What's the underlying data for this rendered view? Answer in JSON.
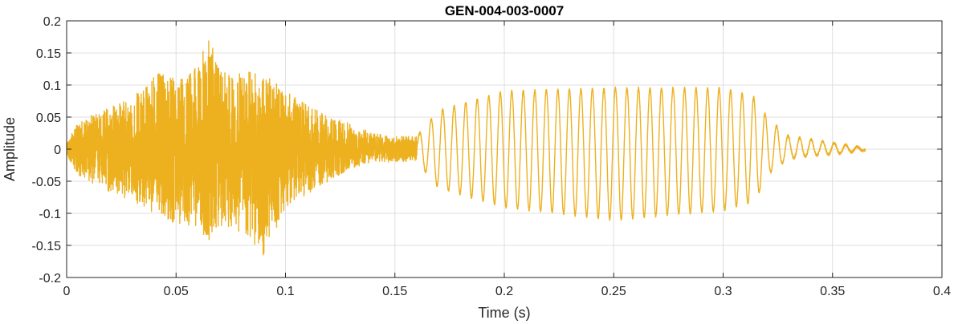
{
  "chart_data": {
    "type": "line",
    "title": "GEN-004-003-0007",
    "xlabel": "Time (s)",
    "ylabel": "Amplitude",
    "xlim": [
      0,
      0.4
    ],
    "ylim": [
      -0.2,
      0.2
    ],
    "x_ticks": [
      0,
      0.05,
      0.1,
      0.15,
      0.2,
      0.25,
      0.3,
      0.35,
      0.4
    ],
    "x_tick_labels": [
      "0",
      "0.05",
      "0.1",
      "0.15",
      "0.2",
      "0.25",
      "0.3",
      "0.35",
      "0.4"
    ],
    "y_ticks": [
      -0.2,
      -0.15,
      -0.1,
      -0.05,
      0,
      0.05,
      0.1,
      0.15,
      0.2
    ],
    "y_tick_labels": [
      "-0.2",
      "-0.15",
      "-0.1",
      "-0.05",
      "0",
      "0.05",
      "0.1",
      "0.15",
      "0.2"
    ],
    "grid": true,
    "box": true,
    "series": [
      {
        "color": "#EDB120",
        "envelope": {
          "x": [
            0,
            0.005,
            0.01,
            0.02,
            0.03,
            0.04,
            0.05,
            0.06,
            0.065,
            0.07,
            0.08,
            0.09,
            0.1,
            0.11,
            0.12,
            0.13,
            0.14,
            0.15,
            0.16,
            0.17,
            0.2,
            0.25,
            0.3,
            0.315,
            0.32,
            0.33,
            0.34,
            0.35,
            0.365
          ],
          "upper": [
            0.01,
            0.04,
            0.05,
            0.07,
            0.08,
            0.12,
            0.11,
            0.13,
            0.18,
            0.12,
            0.12,
            0.12,
            0.09,
            0.07,
            0.05,
            0.04,
            0.025,
            0.02,
            0.02,
            0.06,
            0.09,
            0.095,
            0.095,
            0.08,
            0.05,
            0.02,
            0.015,
            0.01,
            0.002
          ],
          "lower": [
            -0.01,
            -0.04,
            -0.05,
            -0.07,
            -0.08,
            -0.1,
            -0.12,
            -0.12,
            -0.15,
            -0.12,
            -0.13,
            -0.17,
            -0.09,
            -0.07,
            -0.05,
            -0.03,
            -0.02,
            -0.02,
            -0.02,
            -0.06,
            -0.09,
            -0.11,
            -0.095,
            -0.08,
            -0.04,
            -0.015,
            -0.01,
            -0.008,
            -0.002
          ]
        },
        "segments": [
          {
            "x_start": 0,
            "x_end": 0.16,
            "character": "noise"
          },
          {
            "x_start": 0.16,
            "x_end": 0.365,
            "character": "oscillation",
            "frequency_hz": 190
          }
        ]
      }
    ]
  }
}
